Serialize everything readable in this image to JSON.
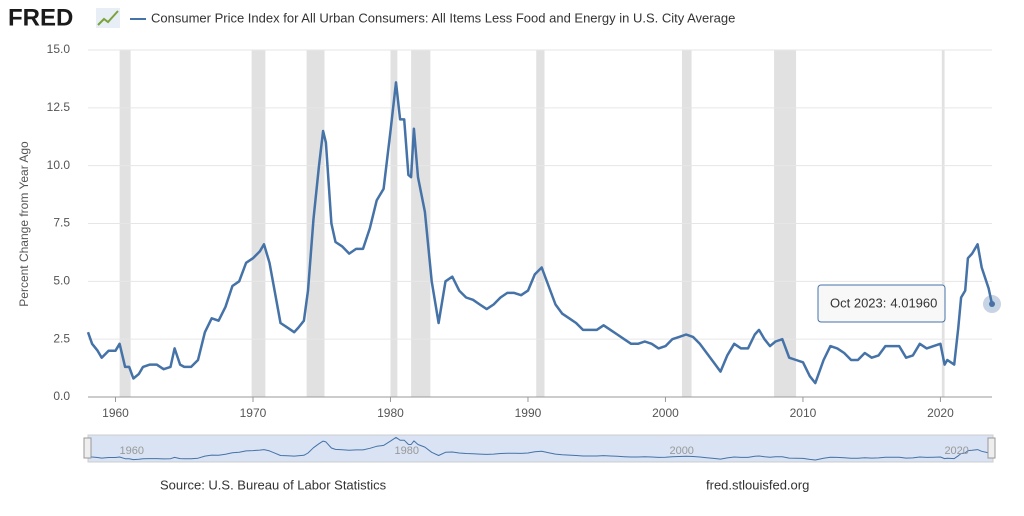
{
  "chart_data": {
    "type": "line",
    "logo": "FRED",
    "ylabel": "Percent Change from Year Ago",
    "source": "Source: U.S. Bureau of Labor Statistics",
    "site": "fred.stlouisfed.org",
    "xlim": [
      1958,
      2023.75
    ],
    "ylim": [
      0,
      15
    ],
    "xticks": [
      1960,
      1970,
      1980,
      1990,
      2000,
      2010,
      2020
    ],
    "yticks": [
      {
        "value": 0,
        "label": "0.0"
      },
      {
        "value": 2.5,
        "label": "2.5"
      },
      {
        "value": 5,
        "label": "5.0"
      },
      {
        "value": 7.5,
        "label": "7.5"
      },
      {
        "value": 10,
        "label": "10.0"
      },
      {
        "value": 12.5,
        "label": "12.5"
      },
      {
        "value": 15,
        "label": "15.0"
      }
    ],
    "navigator_xticks": [
      1960,
      1980,
      2000,
      2020
    ],
    "grid": true,
    "recessions": [
      [
        1960.3,
        1961.1
      ],
      [
        1969.9,
        1970.9
      ],
      [
        1973.9,
        1975.2
      ],
      [
        1980.0,
        1980.5
      ],
      [
        1981.5,
        1982.9
      ],
      [
        1990.6,
        1991.2
      ],
      [
        2001.2,
        2001.9
      ],
      [
        2007.9,
        2009.5
      ],
      [
        2020.1,
        2020.3
      ]
    ],
    "tooltip": {
      "label": "Oct 2023:",
      "value": 4.0196,
      "value_label": "4.01960"
    },
    "x": [
      1958.0,
      1958.3,
      1958.7,
      1959.0,
      1959.5,
      1960.0,
      1960.3,
      1960.7,
      1961.0,
      1961.3,
      1961.7,
      1962.0,
      1962.5,
      1963.0,
      1963.5,
      1964.0,
      1964.3,
      1964.7,
      1965.0,
      1965.5,
      1966.0,
      1966.5,
      1967.0,
      1967.5,
      1968.0,
      1968.5,
      1969.0,
      1969.5,
      1970.0,
      1970.5,
      1970.8,
      1971.2,
      1971.6,
      1972.0,
      1972.5,
      1973.0,
      1973.3,
      1973.7,
      1974.0,
      1974.4,
      1974.8,
      1975.1,
      1975.3,
      1975.7,
      1976.0,
      1976.5,
      1977.0,
      1977.5,
      1978.0,
      1978.5,
      1979.0,
      1979.5,
      1980.0,
      1980.4,
      1980.7,
      1981.0,
      1981.3,
      1981.5,
      1981.7,
      1982.0,
      1982.5,
      1983.0,
      1983.5,
      1984.0,
      1984.5,
      1985.0,
      1985.5,
      1986.0,
      1986.5,
      1987.0,
      1987.5,
      1988.0,
      1988.5,
      1989.0,
      1989.5,
      1990.0,
      1990.5,
      1991.0,
      1991.5,
      1992.0,
      1992.5,
      1993.0,
      1993.5,
      1994.0,
      1994.5,
      1995.0,
      1995.5,
      1996.0,
      1996.5,
      1997.0,
      1997.5,
      1998.0,
      1998.5,
      1999.0,
      1999.5,
      2000.0,
      2000.5,
      2001.0,
      2001.5,
      2002.0,
      2002.5,
      2003.0,
      2003.5,
      2004.0,
      2004.5,
      2005.0,
      2005.5,
      2006.0,
      2006.5,
      2006.8,
      2007.2,
      2007.6,
      2008.0,
      2008.5,
      2009.0,
      2009.5,
      2010.0,
      2010.5,
      2010.9,
      2011.5,
      2012.0,
      2012.5,
      2013.0,
      2013.5,
      2014.0,
      2014.5,
      2015.0,
      2015.5,
      2016.0,
      2016.5,
      2017.0,
      2017.5,
      2018.0,
      2018.5,
      2019.0,
      2019.5,
      2020.0,
      2020.3,
      2020.5,
      2021.0,
      2021.3,
      2021.5,
      2021.8,
      2022.0,
      2022.3,
      2022.7,
      2023.0,
      2023.5,
      2023.75
    ],
    "series": [
      {
        "name": "Consumer Price Index for All Urban Consumers: All Items Less Food and Energy in U.S. City Average",
        "color": "#4572a7",
        "values": [
          2.8,
          2.3,
          2.0,
          1.7,
          2.0,
          2.0,
          2.3,
          1.3,
          1.3,
          0.8,
          1.0,
          1.3,
          1.4,
          1.4,
          1.2,
          1.3,
          2.1,
          1.4,
          1.3,
          1.3,
          1.6,
          2.8,
          3.4,
          3.3,
          3.9,
          4.8,
          5.0,
          5.8,
          6.0,
          6.3,
          6.6,
          5.8,
          4.5,
          3.2,
          3.0,
          2.8,
          3.0,
          3.3,
          4.6,
          7.7,
          10.0,
          11.5,
          11.0,
          7.5,
          6.7,
          6.5,
          6.2,
          6.4,
          6.4,
          7.3,
          8.5,
          9.0,
          11.5,
          13.6,
          12.0,
          12.0,
          9.6,
          9.5,
          11.6,
          9.5,
          8.0,
          5.0,
          3.2,
          5.0,
          5.2,
          4.6,
          4.3,
          4.2,
          4.0,
          3.8,
          4.0,
          4.3,
          4.5,
          4.5,
          4.4,
          4.6,
          5.3,
          5.6,
          4.8,
          4.0,
          3.6,
          3.4,
          3.2,
          2.9,
          2.9,
          2.9,
          3.1,
          2.9,
          2.7,
          2.5,
          2.3,
          2.3,
          2.4,
          2.3,
          2.1,
          2.2,
          2.5,
          2.6,
          2.7,
          2.6,
          2.3,
          1.9,
          1.5,
          1.1,
          1.8,
          2.3,
          2.1,
          2.1,
          2.7,
          2.9,
          2.5,
          2.2,
          2.4,
          2.5,
          1.7,
          1.6,
          1.5,
          0.9,
          0.6,
          1.6,
          2.2,
          2.1,
          1.9,
          1.6,
          1.6,
          1.9,
          1.7,
          1.8,
          2.2,
          2.2,
          2.2,
          1.7,
          1.8,
          2.3,
          2.1,
          2.2,
          2.3,
          1.4,
          1.6,
          1.4,
          3.0,
          4.3,
          4.6,
          6.0,
          6.2,
          6.6,
          5.6,
          4.7,
          4.0196
        ]
      }
    ]
  }
}
